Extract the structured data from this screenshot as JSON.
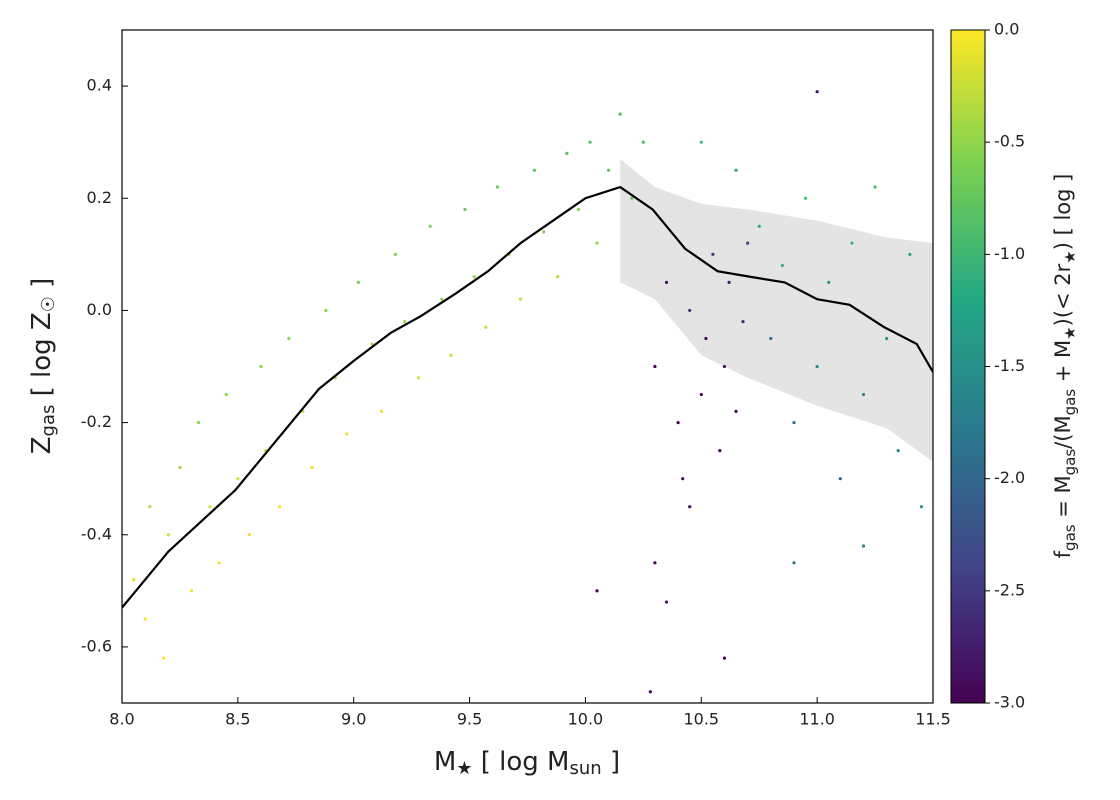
{
  "chart_data": {
    "type": "scatter",
    "xlabel": [
      "M",
      "★",
      " [ log M",
      "sun",
      " ]"
    ],
    "ylabel": [
      "Z",
      "gas",
      " [ log Z",
      "☉",
      " ]"
    ],
    "colorbar_label": [
      "f",
      "gas",
      " = M",
      "gas",
      "/(M",
      "gas",
      " + M",
      "★",
      ")(< 2r",
      "★",
      ") [ log ]"
    ],
    "colormap": "viridis",
    "clim": [
      -3,
      0
    ],
    "cticks": [
      {
        "value": 0,
        "label": "0.0"
      },
      {
        "value": -0.5,
        "label": "-0.5"
      },
      {
        "value": -1,
        "label": "-1.0"
      },
      {
        "value": -1.5,
        "label": "-1.5"
      },
      {
        "value": -2,
        "label": "-2.0"
      },
      {
        "value": -2.5,
        "label": "-2.5"
      },
      {
        "value": -3,
        "label": "-3.0"
      }
    ],
    "xlim": [
      8,
      11.5
    ],
    "ylim": [
      -0.7,
      0.5
    ],
    "xticks": [
      {
        "value": 8,
        "label": "8.0"
      },
      {
        "value": 8.5,
        "label": "8.5"
      },
      {
        "value": 9,
        "label": "9.0"
      },
      {
        "value": 9.5,
        "label": "9.5"
      },
      {
        "value": 10,
        "label": "10.0"
      },
      {
        "value": 10.5,
        "label": "10.5"
      },
      {
        "value": 11,
        "label": "11.0"
      },
      {
        "value": 11.5,
        "label": "11.5"
      }
    ],
    "yticks": [
      {
        "value": -0.6,
        "label": "-0.6"
      },
      {
        "value": -0.4,
        "label": "-0.4"
      },
      {
        "value": -0.2,
        "label": "-0.2"
      },
      {
        "value": 0,
        "label": "0.0"
      },
      {
        "value": 0.2,
        "label": "0.2"
      },
      {
        "value": 0.4,
        "label": "0.4"
      }
    ],
    "x": [
      8.05,
      8.1,
      8.12,
      8.18,
      8.2,
      8.25,
      8.3,
      8.33,
      8.38,
      8.42,
      8.45,
      8.5,
      8.55,
      8.6,
      8.62,
      8.68,
      8.72,
      8.78,
      8.82,
      8.88,
      8.92,
      8.97,
      9.02,
      9.08,
      9.12,
      9.18,
      9.22,
      9.28,
      9.33,
      9.38,
      9.42,
      9.48,
      9.52,
      9.57,
      9.62,
      9.67,
      9.72,
      9.78,
      9.82,
      9.88,
      9.92,
      9.97,
      10.02,
      10.05,
      10.1,
      10.15,
      10.2,
      10.25,
      10.3,
      10.35,
      10.4,
      10.42,
      10.45,
      10.5,
      10.52,
      10.55,
      10.58,
      10.6,
      10.62,
      10.65,
      10.68,
      10.3,
      10.35,
      10.05,
      10.6,
      10.28,
      10.45,
      10.7,
      10.75,
      10.8,
      10.85,
      10.9,
      10.95,
      11.0,
      11.05,
      11.1,
      11.15,
      11.2,
      11.25,
      11.3,
      11.35,
      11.4,
      11.45,
      11.0,
      10.9,
      11.2,
      10.5,
      10.65
    ],
    "values": [
      -0.48,
      -0.55,
      -0.35,
      -0.62,
      -0.4,
      -0.28,
      -0.5,
      -0.2,
      -0.35,
      -0.45,
      -0.15,
      -0.3,
      -0.4,
      -0.1,
      -0.25,
      -0.35,
      -0.05,
      -0.18,
      -0.28,
      0.0,
      -0.12,
      -0.22,
      0.05,
      -0.06,
      -0.18,
      0.1,
      -0.02,
      -0.12,
      0.15,
      0.02,
      -0.08,
      0.18,
      0.06,
      -0.03,
      0.22,
      0.1,
      0.02,
      0.25,
      0.14,
      0.06,
      0.28,
      0.18,
      0.3,
      0.12,
      0.25,
      0.35,
      0.2,
      0.3,
      -0.1,
      0.05,
      -0.2,
      -0.3,
      0.0,
      -0.15,
      -0.05,
      0.1,
      -0.25,
      -0.1,
      0.05,
      -0.18,
      -0.02,
      -0.45,
      -0.52,
      -0.5,
      -0.62,
      -0.68,
      -0.35,
      0.12,
      0.15,
      -0.05,
      0.08,
      -0.2,
      0.2,
      -0.1,
      0.05,
      -0.3,
      0.12,
      -0.15,
      0.22,
      -0.05,
      -0.25,
      0.1,
      -0.35,
      0.39,
      -0.45,
      -0.42,
      0.3,
      0.25
    ],
    "color_values": [
      -0.1,
      -0.05,
      -0.3,
      -0.05,
      -0.2,
      -0.4,
      -0.05,
      -0.5,
      -0.15,
      -0.05,
      -0.5,
      -0.2,
      -0.05,
      -0.5,
      -0.25,
      -0.05,
      -0.55,
      -0.3,
      -0.1,
      -0.55,
      -0.35,
      -0.1,
      -0.6,
      -0.4,
      -0.1,
      -0.6,
      -0.45,
      -0.15,
      -0.65,
      -0.5,
      -0.2,
      -0.7,
      -0.5,
      -0.25,
      -0.7,
      -0.55,
      -0.3,
      -0.8,
      -0.6,
      -0.35,
      -0.85,
      -0.6,
      -0.9,
      -0.5,
      -0.8,
      -0.9,
      -0.7,
      -0.95,
      -3,
      -2.8,
      -3,
      -2.9,
      -2.6,
      -3,
      -2.9,
      -2.5,
      -3,
      -2.8,
      -2.7,
      -3,
      -2.6,
      -3,
      -2.9,
      -3,
      -3,
      -2.9,
      -2.9,
      -2.4,
      -1.2,
      -1.8,
      -1.1,
      -1.9,
      -0.9,
      -1.5,
      -1.3,
      -2.0,
      -1.0,
      -1.6,
      -0.9,
      -1.4,
      -1.7,
      -1.2,
      -1.5,
      -2.8,
      -1.8,
      -1.6,
      -1.0,
      -1.2
    ],
    "median": {
      "color": "#000000",
      "x": [
        8.0,
        8.2,
        8.49,
        8.71,
        8.85,
        9.0,
        9.16,
        9.29,
        9.44,
        9.58,
        9.72,
        9.86,
        10.0,
        10.15,
        10.29,
        10.43,
        10.57,
        10.71,
        10.86,
        11.0,
        11.14,
        11.29,
        11.43,
        11.5
      ],
      "values": [
        -0.53,
        -0.43,
        -0.32,
        -0.21,
        -0.14,
        -0.09,
        -0.04,
        -0.01,
        0.03,
        0.07,
        0.12,
        0.16,
        0.2,
        0.22,
        0.18,
        0.11,
        0.07,
        0.06,
        0.05,
        0.02,
        0.01,
        -0.03,
        -0.06,
        -0.11
      ]
    },
    "band": {
      "color": "#e4e4e4",
      "x": [
        10.15,
        10.3,
        10.5,
        10.7,
        11.0,
        11.3,
        11.5
      ],
      "upper": [
        0.27,
        0.22,
        0.19,
        0.18,
        0.16,
        0.13,
        0.12
      ],
      "lower": [
        0.05,
        0.02,
        -0.08,
        -0.12,
        -0.17,
        -0.21,
        -0.27
      ]
    }
  }
}
